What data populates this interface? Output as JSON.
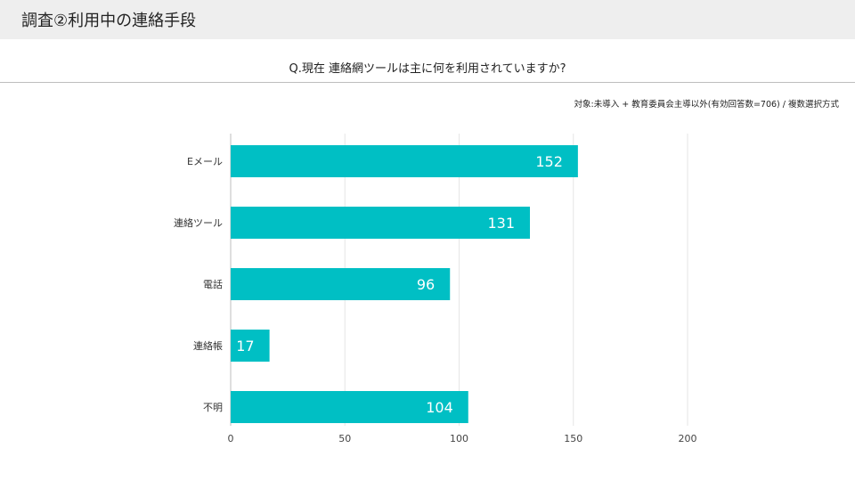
{
  "slide": {
    "title": "調査②利用中の連絡手段"
  },
  "question": "Q.現在 連絡網ツールは主に何を利用されていますか?",
  "note": "対象:未導入 + 教育委員会主導以外(有効回答数=706) / 複数選択方式",
  "colors": {
    "bar": "#00bfc4",
    "grid": "#e6e6e6",
    "header_band": "#eeeeee"
  },
  "chart_data": {
    "type": "bar",
    "orientation": "horizontal",
    "categories": [
      "Eメール",
      "連絡ツール",
      "電話",
      "連絡帳",
      "不明"
    ],
    "values": [
      152,
      131,
      96,
      17,
      104
    ],
    "xlim": [
      0,
      200
    ],
    "xticks": [
      "0",
      "50",
      "100",
      "150",
      "200"
    ],
    "grid": true,
    "data_labels": true
  }
}
